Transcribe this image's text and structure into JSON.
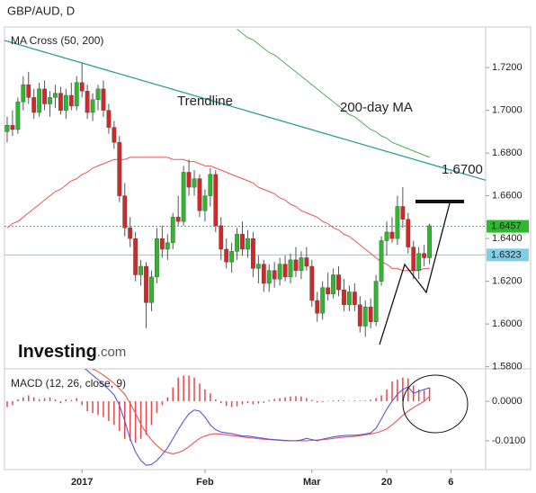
{
  "chart_data": {
    "type": "candlestick",
    "title": "GBP/AUD, D",
    "subtitle": "MA Cross (50, 200)",
    "logo": [
      "Investing",
      ".com"
    ],
    "annotations": [
      "Trendline",
      "200-day MA",
      "1.6700"
    ],
    "categories": [
      null,
      null,
      null,
      null,
      null,
      null,
      null,
      null,
      null,
      null,
      null,
      null,
      null,
      null,
      "2017",
      null,
      null,
      null,
      null,
      null,
      null,
      null,
      null,
      null,
      null,
      null,
      null,
      null,
      null,
      null,
      null,
      null,
      null,
      null,
      null,
      null,
      null,
      "Feb",
      null,
      null,
      null,
      null,
      null,
      null,
      null,
      null,
      null,
      null,
      null,
      null,
      null,
      null,
      null,
      null,
      null,
      null,
      null,
      "Mar",
      null,
      null,
      null,
      null,
      null,
      null,
      null,
      null,
      null,
      null,
      null,
      null,
      null,
      "20",
      null,
      null,
      null,
      null,
      null,
      null,
      null,
      null,
      null,
      null,
      null,
      "6",
      null,
      null,
      null,
      null,
      null,
      null
    ],
    "up_color": "#2eb82e",
    "down_color": "#d62728",
    "open": [
      1.69,
      1.693,
      1.691,
      1.704,
      1.712,
      1.706,
      1.699,
      1.71,
      1.703,
      1.706,
      1.708,
      1.7,
      1.707,
      1.702,
      1.713,
      1.709,
      1.699,
      1.705,
      1.71,
      1.7,
      1.692,
      1.685,
      1.66,
      1.645,
      1.64,
      1.623,
      1.627,
      1.61,
      1.622,
      1.64,
      1.635,
      1.638,
      1.65,
      1.648,
      1.671,
      1.664,
      1.668,
      1.653,
      1.66,
      1.67,
      1.646,
      1.635,
      1.629,
      1.634,
      1.642,
      1.635,
      1.64,
      1.626,
      1.628,
      1.619,
      1.625,
      1.621,
      1.628,
      1.622,
      1.63,
      1.625,
      1.631,
      1.627,
      1.611,
      1.605,
      1.617,
      1.614,
      1.623,
      1.616,
      1.609,
      1.615,
      1.609,
      1.599,
      1.608,
      1.601,
      1.62,
      1.639,
      1.643,
      1.64,
      1.655,
      1.649,
      1.636,
      1.625,
      1.633,
      1.631,
      null,
      null,
      null,
      null,
      null,
      null,
      null,
      null,
      null,
      null
    ],
    "high": [
      1.697,
      1.7,
      1.706,
      1.716,
      1.718,
      1.71,
      1.713,
      1.714,
      1.709,
      1.712,
      1.711,
      1.71,
      1.713,
      1.716,
      1.722,
      1.712,
      1.708,
      1.712,
      1.714,
      1.703,
      1.695,
      1.688,
      1.666,
      1.65,
      1.643,
      1.63,
      1.629,
      1.625,
      1.645,
      1.646,
      1.642,
      1.652,
      1.66,
      1.674,
      1.677,
      1.672,
      1.67,
      1.663,
      1.673,
      1.672,
      1.65,
      1.64,
      1.638,
      1.645,
      1.648,
      1.644,
      1.643,
      1.632,
      1.63,
      1.628,
      1.629,
      1.631,
      1.632,
      1.633,
      1.636,
      1.634,
      1.636,
      1.63,
      1.615,
      1.62,
      1.624,
      1.626,
      1.627,
      1.621,
      1.618,
      1.619,
      1.613,
      1.611,
      1.612,
      1.623,
      1.641,
      1.648,
      1.65,
      1.66,
      1.664,
      1.652,
      1.639,
      1.636,
      1.637,
      1.647,
      null,
      null,
      null,
      null,
      null,
      null,
      null,
      null,
      null,
      null
    ],
    "low": [
      1.685,
      1.688,
      1.689,
      1.7,
      1.703,
      1.696,
      1.697,
      1.7,
      1.697,
      1.701,
      1.698,
      1.696,
      1.7,
      1.7,
      1.706,
      1.696,
      1.695,
      1.7,
      1.697,
      1.689,
      1.682,
      1.657,
      1.641,
      1.636,
      1.62,
      1.618,
      1.598,
      1.606,
      1.619,
      1.631,
      1.63,
      1.635,
      1.646,
      1.646,
      1.66,
      1.66,
      1.65,
      1.648,
      1.655,
      1.643,
      1.63,
      1.626,
      1.624,
      1.63,
      1.632,
      1.631,
      1.622,
      1.619,
      1.615,
      1.615,
      1.617,
      1.618,
      1.62,
      1.619,
      1.622,
      1.621,
      1.625,
      1.608,
      1.601,
      1.602,
      1.611,
      1.612,
      1.613,
      1.606,
      1.606,
      1.606,
      1.596,
      1.594,
      1.598,
      1.599,
      1.618,
      1.632,
      1.638,
      1.637,
      1.645,
      1.633,
      1.621,
      1.621,
      1.627,
      1.628,
      null,
      null,
      null,
      null,
      null,
      null,
      null,
      null,
      null,
      null
    ],
    "close": [
      1.693,
      1.691,
      1.704,
      1.712,
      1.706,
      1.699,
      1.71,
      1.703,
      1.706,
      1.708,
      1.7,
      1.707,
      1.702,
      1.713,
      1.709,
      1.699,
      1.705,
      1.71,
      1.7,
      1.692,
      1.685,
      1.66,
      1.645,
      1.64,
      1.623,
      1.627,
      1.61,
      1.622,
      1.64,
      1.635,
      1.638,
      1.65,
      1.648,
      1.671,
      1.664,
      1.668,
      1.653,
      1.66,
      1.67,
      1.646,
      1.635,
      1.629,
      1.634,
      1.642,
      1.635,
      1.64,
      1.626,
      1.628,
      1.619,
      1.625,
      1.621,
      1.628,
      1.622,
      1.63,
      1.625,
      1.631,
      1.627,
      1.611,
      1.605,
      1.617,
      1.614,
      1.623,
      1.616,
      1.609,
      1.615,
      1.609,
      1.599,
      1.608,
      1.601,
      1.62,
      1.639,
      1.643,
      1.64,
      1.655,
      1.649,
      1.636,
      1.625,
      1.633,
      1.631,
      1.646,
      null,
      null,
      null,
      null,
      null,
      null,
      null,
      null,
      null,
      null
    ],
    "series": [
      {
        "color": "#ef5350",
        "values": [
          1.645,
          1.647,
          1.648,
          1.65,
          1.652,
          1.654,
          1.656,
          1.658,
          1.66,
          1.662,
          1.663,
          1.665,
          1.667,
          1.668,
          1.67,
          1.671,
          1.673,
          1.674,
          1.675,
          1.676,
          1.677,
          1.677,
          1.677,
          1.678,
          1.678,
          1.678,
          1.678,
          1.678,
          1.678,
          1.678,
          1.678,
          1.677,
          1.677,
          1.677,
          1.676,
          1.676,
          1.675,
          1.674,
          1.674,
          1.673,
          1.672,
          1.671,
          1.67,
          1.669,
          1.668,
          1.667,
          1.666,
          1.664,
          1.663,
          1.662,
          1.661,
          1.659,
          1.658,
          1.656,
          1.655,
          1.653,
          1.652,
          1.651,
          1.65,
          1.648,
          1.647,
          1.645,
          1.644,
          1.642,
          1.641,
          1.639,
          1.637,
          1.635,
          1.633,
          1.631,
          1.629,
          1.628,
          1.626,
          1.626,
          1.625,
          1.625,
          1.625,
          1.625,
          1.626,
          1.626,
          null,
          null,
          null,
          null,
          null,
          null,
          null,
          null,
          null,
          null
        ]
      },
      {
        "color": "#4caf50",
        "values": [
          null,
          null,
          null,
          null,
          null,
          null,
          null,
          null,
          null,
          null,
          null,
          null,
          null,
          null,
          null,
          null,
          null,
          null,
          null,
          null,
          null,
          null,
          null,
          null,
          null,
          null,
          null,
          null,
          null,
          null,
          null,
          null,
          null,
          null,
          null,
          null,
          null,
          null,
          null,
          null,
          null,
          null,
          null,
          1.738,
          1.736,
          1.734,
          1.733,
          1.731,
          1.729,
          1.727,
          1.726,
          1.724,
          1.722,
          1.72,
          1.718,
          1.716,
          1.714,
          1.712,
          1.71,
          1.708,
          1.706,
          1.704,
          1.702,
          1.7,
          1.698,
          1.697,
          1.695,
          1.693,
          1.691,
          1.69,
          1.688,
          1.687,
          1.685,
          1.684,
          1.683,
          1.682,
          1.681,
          1.68,
          1.679,
          1.678,
          null,
          null,
          null,
          null,
          null,
          null,
          null,
          null,
          null,
          null
        ]
      }
    ],
    "trendline": {
      "color": "#2a9d8f",
      "values": [
        1.7327,
        1.6673
      ]
    },
    "price_lines": [
      {
        "value": 1.6457,
        "color": "#2eb82e",
        "dotted": true
      },
      {
        "value": 1.6323,
        "color": "#7fcde6",
        "dotted": false
      }
    ],
    "ylim": [
      1.579,
      1.739
    ],
    "yticks": [
      {
        "value": 1.72,
        "label": "1.7200"
      },
      {
        "value": 1.7,
        "label": "1.7000"
      },
      {
        "value": 1.68,
        "label": "1.6800"
      },
      {
        "value": 1.66,
        "label": "1.6600"
      },
      {
        "value": 1.64,
        "label": "1.6400"
      },
      {
        "value": 1.62,
        "label": "1.6200"
      },
      {
        "value": 1.6,
        "label": "1.6000"
      },
      {
        "value": 1.58,
        "label": "1.5800"
      }
    ],
    "macd": {
      "title": "MACD (12, 26, close, 9)",
      "ylim": [
        -0.0173,
        0.0082
      ],
      "yticks": [
        {
          "value": 0,
          "label": "0.0000"
        },
        {
          "value": -0.01,
          "label": "-0.0100"
        }
      ],
      "histogram": {
        "color": "#e8474c",
        "values": [
          -0.0015,
          -0.001,
          0.0005,
          0.001,
          0.0015,
          0.001,
          0.0005,
          0.0008,
          0.001,
          0.0005,
          -0.0005,
          0.0005,
          0.0003,
          0.0008,
          -0.001,
          -0.0025,
          -0.003,
          -0.0035,
          -0.004,
          -0.005,
          -0.006,
          -0.0075,
          -0.0095,
          -0.01,
          -0.0105,
          -0.0095,
          -0.0085,
          -0.006,
          -0.003,
          -0.001,
          0.001,
          0.0035,
          0.006,
          0.0065,
          0.0065,
          0.006,
          0.0045,
          0.003,
          0.002,
          0.0005,
          -0.0005,
          -0.0012,
          -0.0015,
          -0.0013,
          -0.0008,
          -0.0005,
          -0.0008,
          -0.0006,
          -0.0004,
          0.0003,
          0.0006,
          0.0008,
          0.001,
          0.0012,
          0.0013,
          0.0012,
          0.0008,
          0.0003,
          -0.0003,
          -0.0002,
          0.0001,
          0.0002,
          0.0003,
          0.0002,
          0.0001,
          0.0002,
          0.0001,
          0.0002,
          0.0004,
          0.0008,
          0.0015,
          0.003,
          0.005,
          0.0055,
          0.006,
          0.0058,
          0.004,
          0.003,
          0.0028,
          0.0035,
          null,
          null,
          null,
          null,
          null,
          null,
          null,
          null,
          null,
          null
        ]
      },
      "macd_line": {
        "color": "#5656d8",
        "values": [
          null,
          null,
          null,
          null,
          null,
          null,
          null,
          null,
          null,
          null,
          null,
          null,
          null,
          0.0098,
          0.0088,
          0.0078,
          0.0066,
          0.0055,
          0.0042,
          0.003,
          0.0016,
          -0.001,
          -0.005,
          -0.0095,
          -0.0128,
          -0.015,
          -0.0162,
          -0.016,
          -0.015,
          -0.0135,
          -0.0118,
          -0.0095,
          -0.0072,
          -0.005,
          -0.0032,
          -0.0022,
          -0.0025,
          -0.004,
          -0.006,
          -0.0072,
          -0.0078,
          -0.008,
          -0.0082,
          -0.0085,
          -0.0088,
          -0.0088,
          -0.009,
          -0.0092,
          -0.0094,
          -0.0096,
          -0.0097,
          -0.0098,
          -0.0099,
          -0.01,
          -0.01,
          -0.0098,
          -0.0094,
          -0.0097,
          -0.01,
          -0.0096,
          -0.0093,
          -0.009,
          -0.0088,
          -0.0087,
          -0.0086,
          -0.0086,
          -0.0085,
          -0.0083,
          -0.008,
          -0.0068,
          -0.0045,
          -0.002,
          0,
          0.0018,
          0.003,
          0.0036,
          0.002,
          0.0025,
          0.003,
          0.0034,
          null,
          null,
          null,
          null,
          null,
          null,
          null,
          null,
          null,
          null
        ]
      },
      "signal": {
        "color": "#ef5350",
        "values": [
          null,
          null,
          null,
          null,
          null,
          null,
          null,
          null,
          null,
          null,
          null,
          null,
          null,
          null,
          null,
          0.009,
          0.0082,
          0.0075,
          0.0066,
          0.0056,
          0.0045,
          0.0032,
          0.0018,
          -0.0005,
          -0.003,
          -0.0058,
          -0.008,
          -0.0098,
          -0.0112,
          -0.0124,
          -0.013,
          -0.0133,
          -0.013,
          -0.0124,
          -0.0115,
          -0.0104,
          -0.0094,
          -0.0088,
          -0.0084,
          -0.0082,
          -0.0083,
          -0.0085,
          -0.0087,
          -0.0088,
          -0.009,
          -0.0092,
          -0.0093,
          -0.0095,
          -0.0096,
          -0.0097,
          -0.0098,
          -0.0099,
          -0.01,
          -0.01,
          -0.01,
          -0.01,
          -0.01,
          -0.0099,
          -0.0098,
          -0.0097,
          -0.0096,
          -0.0094,
          -0.0092,
          -0.0091,
          -0.009,
          -0.0089,
          -0.0087,
          -0.0085,
          -0.0083,
          -0.008,
          -0.0076,
          -0.007,
          -0.006,
          -0.0048,
          -0.0036,
          -0.0025,
          -0.0016,
          -0.0008,
          0,
          0.0012,
          null,
          null,
          null,
          null,
          null,
          null,
          null,
          null,
          null,
          null
        ]
      }
    }
  }
}
